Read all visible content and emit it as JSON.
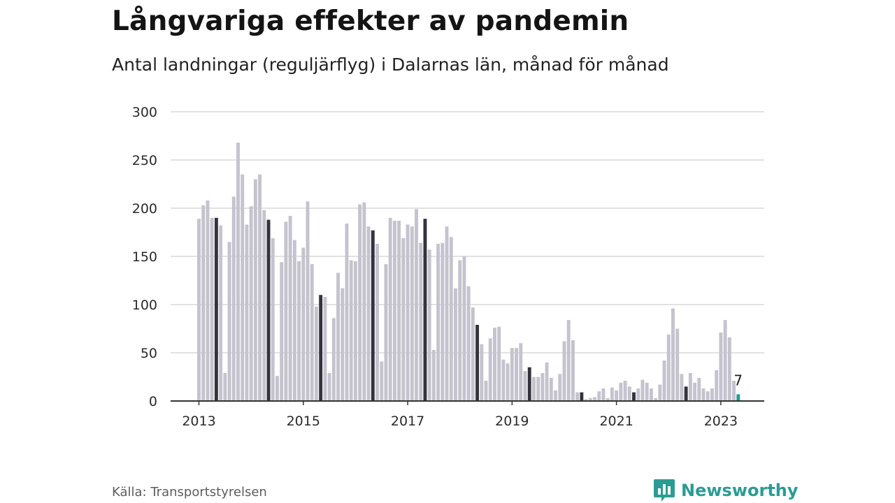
{
  "header": {
    "title": "Långvariga effekter av pandemin",
    "subtitle": "Antal landningar (reguljärflyg) i Dalarnas län, månad för månad"
  },
  "footer": {
    "source": "Källa: Transportstyrelsen",
    "brand": "Newsworthy"
  },
  "colors": {
    "bar": "#c4c3ce",
    "highlight": "#34333d",
    "latest": "#1a9e9a",
    "grid": "#d8d8d8",
    "axis": "#333333",
    "brand": "#2a9c94"
  },
  "chart_data": {
    "type": "bar",
    "x_start": "2013-01",
    "x_end": "2023-05",
    "frequency": "monthly",
    "xticks": [
      "2013",
      "2015",
      "2017",
      "2019",
      "2021",
      "2023"
    ],
    "yticks": [
      0,
      50,
      100,
      150,
      200,
      250,
      300
    ],
    "ylim": [
      0,
      300
    ],
    "grid": true,
    "highlight_month": "May",
    "values": [
      189,
      203,
      208,
      190,
      190,
      182,
      29,
      165,
      212,
      268,
      235,
      183,
      202,
      230,
      235,
      198,
      188,
      169,
      26,
      144,
      186,
      192,
      167,
      145,
      159,
      207,
      142,
      98,
      110,
      108,
      29,
      86,
      133,
      117,
      184,
      146,
      145,
      204,
      206,
      181,
      177,
      163,
      41,
      142,
      190,
      187,
      187,
      169,
      183,
      181,
      199,
      164,
      189,
      157,
      53,
      163,
      164,
      181,
      170,
      117,
      146,
      150,
      119,
      97,
      79,
      59,
      21,
      65,
      76,
      77,
      43,
      39,
      55,
      55,
      60,
      31,
      35,
      25,
      25,
      29,
      40,
      24,
      11,
      28,
      62,
      84,
      63,
      9,
      9,
      2,
      3,
      4,
      10,
      13,
      3,
      14,
      11,
      19,
      21,
      15,
      9,
      13,
      22,
      19,
      13,
      3,
      17,
      42,
      69,
      96,
      75,
      28,
      15,
      29,
      19,
      24,
      13,
      10,
      13,
      32,
      71,
      84,
      66,
      21,
      7
    ],
    "data_labels": [
      {
        "month": "2023-05",
        "label": "7"
      }
    ]
  }
}
